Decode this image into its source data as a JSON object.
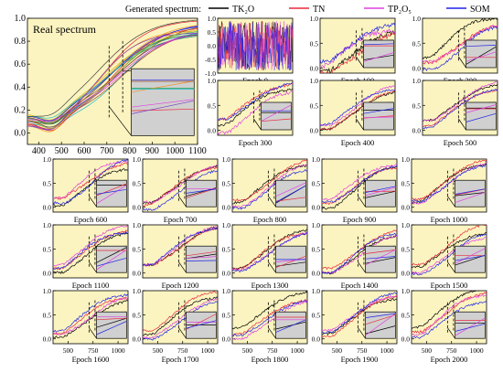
{
  "legend": {
    "prefix": "Generated spectrum:",
    "entries": [
      {
        "label": "TK₂O",
        "color": "#000000"
      },
      {
        "label": "TN",
        "color": "#e8283c"
      },
      {
        "label": "TP₂O₅",
        "color": "#e040e0"
      },
      {
        "label": "SOM",
        "color": "#2222e8"
      }
    ]
  },
  "colors": {
    "panel_bg": "#fbf4c0",
    "inset_bg": "#d0d0d0"
  },
  "chart_data": [
    {
      "type": "line",
      "title": "Real spectrum",
      "xlim": [
        350,
        1100
      ],
      "ylim": [
        -0.1,
        1.0
      ],
      "xticks": [
        "400",
        "500",
        "600",
        "700",
        "800",
        "900",
        "1000",
        "1100"
      ],
      "yticks": [
        "0.0",
        "0.2",
        "0.4",
        "0.6",
        "0.8",
        "1.0"
      ],
      "series_count": 20
    },
    {
      "type": "line",
      "label": "Epoch 0",
      "xlim": [
        350,
        1100
      ],
      "ylim": [
        -1,
        1
      ],
      "yticks": [
        "-1.0",
        "-0.5",
        "0.0",
        "0.5",
        "1.0"
      ]
    },
    {
      "type": "line",
      "label": "Epoch 100",
      "ylim": [
        -0.1,
        1.0
      ],
      "yticks": [
        "0.0",
        "0.5",
        "1.0"
      ]
    },
    {
      "type": "line",
      "label": "Epoch 200",
      "ylim": [
        -0.1,
        1.0
      ],
      "yticks": [
        "0.0",
        "0.5",
        "1.0"
      ]
    },
    {
      "type": "line",
      "label": "Epoch 300",
      "ylim": [
        -0.1,
        1.0
      ],
      "yticks": [
        "0.0",
        "0.5",
        "1.0"
      ]
    },
    {
      "type": "line",
      "label": "Epoch 400",
      "ylim": [
        -0.1,
        1.0
      ],
      "yticks": [
        "0.0",
        "0.5",
        "1.0"
      ]
    },
    {
      "type": "line",
      "label": "Epoch 500",
      "ylim": [
        -0.1,
        1.0
      ],
      "yticks": [
        "0.0",
        "0.5",
        "1.0"
      ]
    },
    {
      "type": "line",
      "label": "Epoch 600",
      "ylim": [
        -0.1,
        1.0
      ],
      "yticks": [
        "0.0",
        "0.5",
        "1.0"
      ]
    },
    {
      "type": "line",
      "label": "Epoch 700",
      "ylim": [
        -0.1,
        1.0
      ],
      "yticks": [
        "0.0",
        "0.5",
        "1.0"
      ]
    },
    {
      "type": "line",
      "label": "Epoch 800",
      "ylim": [
        -0.1,
        1.0
      ],
      "yticks": [
        "0.0",
        "0.5",
        "1.0"
      ]
    },
    {
      "type": "line",
      "label": "Epoch 900",
      "ylim": [
        -0.1,
        1.0
      ],
      "yticks": [
        "0.0",
        "0.5",
        "1.0"
      ]
    },
    {
      "type": "line",
      "label": "Epoch 1000",
      "ylim": [
        -0.1,
        1.0
      ],
      "yticks": [
        "0.0",
        "0.5",
        "1.0"
      ]
    },
    {
      "type": "line",
      "label": "Epoch 1100",
      "ylim": [
        -0.1,
        1.0
      ],
      "yticks": [
        "0.0",
        "0.5",
        "1.0"
      ]
    },
    {
      "type": "line",
      "label": "Epoch 1200",
      "ylim": [
        -0.1,
        1.0
      ],
      "yticks": [
        "0.0",
        "0.5",
        "1.0"
      ]
    },
    {
      "type": "line",
      "label": "Epoch 1300",
      "ylim": [
        -0.1,
        1.0
      ],
      "yticks": [
        "0.0",
        "0.5",
        "1.0"
      ]
    },
    {
      "type": "line",
      "label": "Epoch 1400",
      "ylim": [
        -0.1,
        1.0
      ],
      "yticks": [
        "0.0",
        "0.5",
        "1.0"
      ]
    },
    {
      "type": "line",
      "label": "Epoch 1500",
      "ylim": [
        -0.1,
        1.0
      ],
      "yticks": [
        "0.0",
        "0.5",
        "1.0"
      ]
    },
    {
      "type": "line",
      "label": "Epoch 1600",
      "ylim": [
        -0.1,
        1.0
      ],
      "yticks": [
        "0.0",
        "0.5",
        "1.0"
      ],
      "xticks": [
        "500",
        "750",
        "1000"
      ]
    },
    {
      "type": "line",
      "label": "Epoch 1700",
      "ylim": [
        -0.1,
        1.0
      ],
      "yticks": [
        "0.0",
        "0.5",
        "1.0"
      ],
      "xticks": [
        "500",
        "750",
        "1000"
      ]
    },
    {
      "type": "line",
      "label": "Epoch 1800",
      "ylim": [
        -0.1,
        1.0
      ],
      "yticks": [
        "0.0",
        "0.5",
        "1.0"
      ],
      "xticks": [
        "500",
        "750",
        "1000"
      ]
    },
    {
      "type": "line",
      "label": "Epoch 1900",
      "ylim": [
        -0.1,
        1.0
      ],
      "yticks": [
        "0.0",
        "0.5",
        "1.0"
      ],
      "xticks": [
        "500",
        "750",
        "1000"
      ]
    },
    {
      "type": "line",
      "label": "Epoch 2000",
      "ylim": [
        -0.1,
        1.0
      ],
      "yticks": [
        "0.0",
        "0.5",
        "1.0"
      ],
      "xticks": [
        "500",
        "750",
        "1000"
      ]
    }
  ]
}
